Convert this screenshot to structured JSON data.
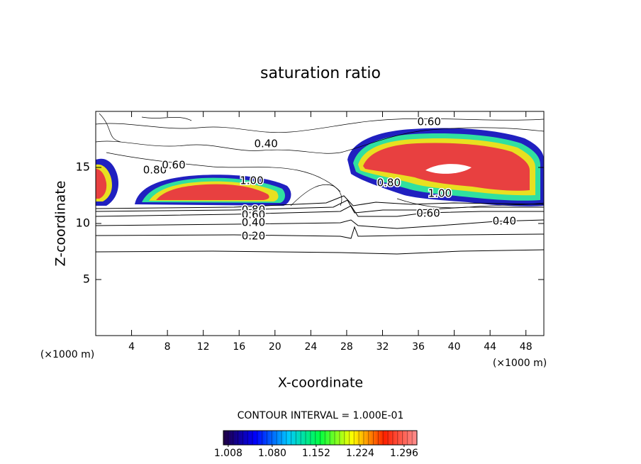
{
  "chart_data": {
    "type": "contour",
    "title": "saturation ratio",
    "x_label": "X-coordinate",
    "y_label": "Z-coordinate",
    "x_unit": "(×1000 m)",
    "y_unit": "(×1000 m)",
    "xlim": [
      0,
      50
    ],
    "ylim": [
      0,
      20
    ],
    "xticks": [
      4,
      8,
      12,
      16,
      20,
      24,
      28,
      32,
      36,
      40,
      44,
      48
    ],
    "yticks": [
      5,
      10,
      15
    ],
    "contour_interval_text": "CONTOUR INTERVAL = 1.000E-01",
    "contour_labels": [
      {
        "value": 0.6,
        "label": "0.60",
        "x": 37.2,
        "y": 19.05
      },
      {
        "value": 0.4,
        "label": "0.40",
        "x": 19.0,
        "y": 17.1
      },
      {
        "value": 0.8,
        "label": "0.80",
        "x": 6.6,
        "y": 14.75
      },
      {
        "value": 0.6,
        "label": "0.60",
        "x": 8.7,
        "y": 15.2
      },
      {
        "value": 1.0,
        "label": "1.00",
        "x": 17.4,
        "y": 13.8
      },
      {
        "value": 0.8,
        "label": "0.80",
        "x": 32.7,
        "y": 13.6
      },
      {
        "value": 1.0,
        "label": "1.00",
        "x": 38.4,
        "y": 12.66
      },
      {
        "value": 0.8,
        "label": "0.80",
        "x": 17.6,
        "y": 11.2
      },
      {
        "value": 0.6,
        "label": "0.60",
        "x": 17.6,
        "y": 10.76
      },
      {
        "value": 0.4,
        "label": "0.40",
        "x": 17.6,
        "y": 10.06
      },
      {
        "value": 0.2,
        "label": "0.20",
        "x": 17.6,
        "y": 8.86
      },
      {
        "value": 0.6,
        "label": "0.60",
        "x": 37.1,
        "y": 10.9
      },
      {
        "value": 0.4,
        "label": "0.40",
        "x": 45.6,
        "y": 10.2
      }
    ],
    "colorbar": {
      "lim": [
        1.0,
        1.317
      ],
      "ticks": [
        1.008,
        {
          "value": 1.08,
          "label": "1.080"
        },
        1.152,
        1.224,
        1.296
      ],
      "colors": [
        "#200040",
        "#0000ff",
        "#00c8ff",
        "#00ff40",
        "#ffff00",
        "#ff2000",
        "#ff9090"
      ]
    }
  }
}
